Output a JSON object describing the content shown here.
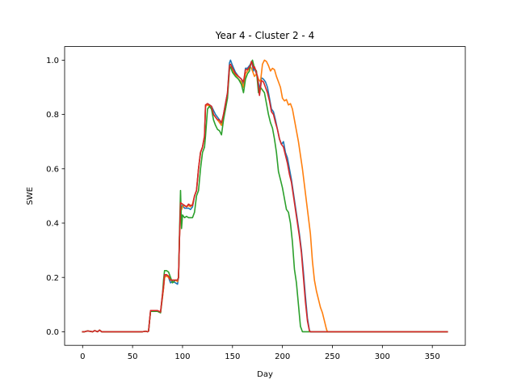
{
  "chart_data": {
    "type": "line",
    "title": "Year 4 - Cluster 2 - 4",
    "xlabel": "Day",
    "ylabel": "SWE",
    "xlim": [
      -18,
      383
    ],
    "ylim": [
      -0.05,
      1.05
    ],
    "xticks": [
      0,
      50,
      100,
      150,
      200,
      250,
      300,
      350
    ],
    "yticks": [
      0.0,
      0.2,
      0.4,
      0.6,
      0.8,
      1.0
    ],
    "xtick_labels": [
      "0",
      "50",
      "100",
      "150",
      "200",
      "250",
      "300",
      "350"
    ],
    "ytick_labels": [
      "0.0",
      "0.2",
      "0.4",
      "0.6",
      "0.8",
      "1.0"
    ],
    "grid": false,
    "legend": "none",
    "series": [
      {
        "color": "#1f77b4",
        "x": [
          0,
          2,
          5,
          10,
          12,
          15,
          17,
          19,
          30,
          40,
          50,
          60,
          63,
          65,
          66,
          67,
          68,
          70,
          75,
          78,
          80,
          81,
          82,
          84,
          86,
          88,
          90,
          93,
          95,
          96,
          97,
          98,
          100,
          102,
          104,
          106,
          108,
          110,
          112,
          114,
          116,
          118,
          120,
          122,
          123,
          125,
          127,
          129,
          131,
          133,
          135,
          137,
          139,
          141,
          143,
          145,
          147,
          148,
          150,
          153,
          156,
          159,
          161,
          163,
          165,
          168,
          169,
          170,
          171,
          172,
          173,
          175,
          177,
          179,
          181,
          183,
          185,
          187,
          189,
          191,
          193,
          195,
          197,
          199,
          201,
          203,
          205,
          207,
          209,
          211,
          213,
          215,
          217,
          219,
          221,
          223,
          225,
          227,
          228,
          230,
          240,
          260,
          300,
          340,
          365
        ],
        "y": [
          0,
          0,
          0.003,
          0,
          0.004,
          0,
          0.006,
          0,
          0,
          0,
          0,
          0,
          0.002,
          0,
          0.002,
          0.04,
          0.075,
          0.075,
          0.075,
          0.07,
          0.13,
          0.16,
          0.2,
          0.21,
          0.2,
          0.18,
          0.185,
          0.18,
          0.175,
          0.2,
          0.35,
          0.45,
          0.465,
          0.455,
          0.455,
          0.455,
          0.45,
          0.46,
          0.5,
          0.52,
          0.6,
          0.66,
          0.68,
          0.72,
          0.83,
          0.84,
          0.835,
          0.83,
          0.815,
          0.8,
          0.79,
          0.78,
          0.76,
          0.8,
          0.84,
          0.88,
          0.99,
          1.0,
          0.98,
          0.955,
          0.94,
          0.93,
          0.91,
          0.97,
          0.97,
          0.985,
          0.995,
          0.98,
          0.96,
          0.975,
          0.96,
          0.94,
          0.89,
          0.935,
          0.93,
          0.92,
          0.9,
          0.86,
          0.82,
          0.81,
          0.78,
          0.745,
          0.71,
          0.69,
          0.7,
          0.66,
          0.64,
          0.6,
          0.56,
          0.51,
          0.46,
          0.41,
          0.36,
          0.3,
          0.22,
          0.13,
          0.05,
          0.005,
          0,
          0,
          0,
          0,
          0,
          0,
          0
        ]
      },
      {
        "color": "#ff7f0e",
        "x": [
          0,
          2,
          5,
          10,
          12,
          15,
          17,
          19,
          30,
          40,
          50,
          60,
          63,
          65,
          66,
          67,
          68,
          70,
          75,
          78,
          80,
          81,
          82,
          84,
          86,
          88,
          90,
          93,
          95,
          96,
          97,
          98,
          100,
          102,
          104,
          106,
          108,
          110,
          112,
          114,
          116,
          118,
          120,
          122,
          123,
          125,
          127,
          129,
          131,
          133,
          135,
          137,
          139,
          141,
          143,
          145,
          147,
          148,
          150,
          153,
          156,
          159,
          161,
          163,
          165,
          168,
          169,
          170,
          172,
          174,
          176,
          178,
          180,
          182,
          184,
          186,
          188,
          190,
          192,
          194,
          196,
          198,
          200,
          202,
          204,
          206,
          208,
          210,
          212,
          214,
          216,
          218,
          220,
          222,
          224,
          226,
          228,
          230,
          232,
          234,
          236,
          238,
          240,
          242,
          244,
          245,
          246,
          260,
          300,
          340,
          365
        ],
        "y": [
          0,
          0,
          0.003,
          0,
          0.004,
          0,
          0.006,
          0,
          0,
          0,
          0,
          0,
          0.002,
          0,
          0.002,
          0.04,
          0.075,
          0.075,
          0.075,
          0.07,
          0.13,
          0.16,
          0.2,
          0.205,
          0.2,
          0.19,
          0.19,
          0.19,
          0.185,
          0.2,
          0.35,
          0.44,
          0.46,
          0.465,
          0.46,
          0.465,
          0.46,
          0.47,
          0.5,
          0.52,
          0.6,
          0.66,
          0.68,
          0.72,
          0.83,
          0.835,
          0.83,
          0.82,
          0.8,
          0.79,
          0.78,
          0.77,
          0.76,
          0.79,
          0.82,
          0.87,
          0.97,
          0.975,
          0.96,
          0.945,
          0.93,
          0.92,
          0.9,
          0.95,
          0.96,
          0.975,
          0.97,
          0.96,
          0.94,
          0.95,
          0.93,
          0.92,
          0.985,
          1.0,
          0.995,
          0.98,
          0.96,
          0.97,
          0.965,
          0.94,
          0.92,
          0.9,
          0.86,
          0.85,
          0.855,
          0.835,
          0.84,
          0.82,
          0.78,
          0.74,
          0.7,
          0.65,
          0.6,
          0.54,
          0.48,
          0.42,
          0.36,
          0.26,
          0.19,
          0.15,
          0.12,
          0.09,
          0.07,
          0.04,
          0.01,
          0,
          0,
          0,
          0,
          0,
          0
        ]
      },
      {
        "color": "#2ca02c",
        "x": [
          0,
          2,
          5,
          10,
          12,
          15,
          17,
          19,
          30,
          40,
          50,
          60,
          63,
          65,
          66,
          67,
          68,
          70,
          75,
          78,
          80,
          81,
          82,
          84,
          86,
          88,
          90,
          93,
          95,
          96,
          97,
          98,
          99,
          100,
          102,
          104,
          106,
          108,
          110,
          112,
          114,
          116,
          118,
          120,
          122,
          123,
          125,
          127,
          129,
          131,
          133,
          135,
          137,
          139,
          141,
          143,
          145,
          147,
          148,
          150,
          153,
          156,
          159,
          161,
          163,
          165,
          167,
          168,
          169,
          170,
          172,
          174,
          176,
          178,
          180,
          182,
          184,
          186,
          188,
          190,
          192,
          194,
          196,
          198,
          200,
          202,
          204,
          206,
          208,
          210,
          212,
          214,
          216,
          218,
          220,
          222,
          224,
          226,
          240,
          260,
          300,
          340,
          365
        ],
        "y": [
          0,
          0,
          0.003,
          0,
          0.004,
          0,
          0.006,
          0,
          0,
          0,
          0,
          0,
          0.002,
          0,
          0.002,
          0.04,
          0.075,
          0.075,
          0.075,
          0.07,
          0.14,
          0.19,
          0.225,
          0.225,
          0.22,
          0.2,
          0.18,
          0.19,
          0.19,
          0.2,
          0.37,
          0.52,
          0.38,
          0.43,
          0.42,
          0.425,
          0.42,
          0.42,
          0.42,
          0.44,
          0.5,
          0.52,
          0.6,
          0.66,
          0.68,
          0.72,
          0.82,
          0.83,
          0.82,
          0.78,
          0.76,
          0.745,
          0.74,
          0.725,
          0.78,
          0.82,
          0.86,
          0.97,
          0.975,
          0.955,
          0.94,
          0.93,
          0.91,
          0.88,
          0.93,
          0.95,
          0.96,
          0.985,
          0.99,
          1.0,
          0.97,
          0.96,
          0.88,
          0.9,
          0.89,
          0.88,
          0.84,
          0.8,
          0.77,
          0.75,
          0.71,
          0.66,
          0.59,
          0.56,
          0.53,
          0.49,
          0.45,
          0.44,
          0.4,
          0.33,
          0.23,
          0.18,
          0.1,
          0.02,
          0,
          0,
          0,
          0,
          0,
          0,
          0,
          0,
          0
        ]
      },
      {
        "color": "#d62728",
        "x": [
          0,
          2,
          5,
          10,
          12,
          15,
          17,
          19,
          30,
          40,
          50,
          60,
          63,
          65,
          66,
          67,
          68,
          70,
          75,
          78,
          80,
          81,
          82,
          84,
          86,
          88,
          90,
          93,
          95,
          96,
          97,
          98,
          100,
          102,
          104,
          106,
          108,
          110,
          112,
          114,
          116,
          118,
          120,
          122,
          123,
          125,
          127,
          129,
          131,
          133,
          135,
          137,
          139,
          141,
          143,
          145,
          147,
          148,
          150,
          153,
          156,
          159,
          161,
          163,
          165,
          168,
          169,
          170,
          171,
          172,
          173,
          175,
          177,
          179,
          181,
          183,
          185,
          187,
          189,
          191,
          193,
          195,
          197,
          199,
          201,
          203,
          205,
          207,
          209,
          211,
          213,
          215,
          217,
          219,
          221,
          223,
          225,
          227,
          228,
          230,
          240,
          260,
          300,
          340,
          365
        ],
        "y": [
          0,
          0,
          0.003,
          0,
          0.004,
          0,
          0.006,
          0,
          0,
          0,
          0,
          0,
          0.002,
          0,
          0.002,
          0.04,
          0.078,
          0.078,
          0.078,
          0.073,
          0.14,
          0.17,
          0.21,
          0.21,
          0.205,
          0.19,
          0.19,
          0.19,
          0.19,
          0.2,
          0.35,
          0.475,
          0.47,
          0.465,
          0.46,
          0.47,
          0.465,
          0.465,
          0.5,
          0.52,
          0.6,
          0.66,
          0.68,
          0.72,
          0.835,
          0.84,
          0.835,
          0.83,
          0.8,
          0.79,
          0.78,
          0.78,
          0.77,
          0.8,
          0.84,
          0.88,
          0.98,
          0.985,
          0.97,
          0.95,
          0.94,
          0.93,
          0.92,
          0.965,
          0.965,
          0.98,
          0.995,
          0.985,
          0.97,
          0.975,
          0.965,
          0.94,
          0.87,
          0.925,
          0.92,
          0.9,
          0.88,
          0.85,
          0.81,
          0.8,
          0.77,
          0.745,
          0.71,
          0.69,
          0.68,
          0.65,
          0.62,
          0.58,
          0.55,
          0.5,
          0.45,
          0.4,
          0.35,
          0.29,
          0.2,
          0.11,
          0.04,
          0.003,
          0,
          0,
          0,
          0,
          0,
          0,
          0
        ]
      }
    ]
  }
}
